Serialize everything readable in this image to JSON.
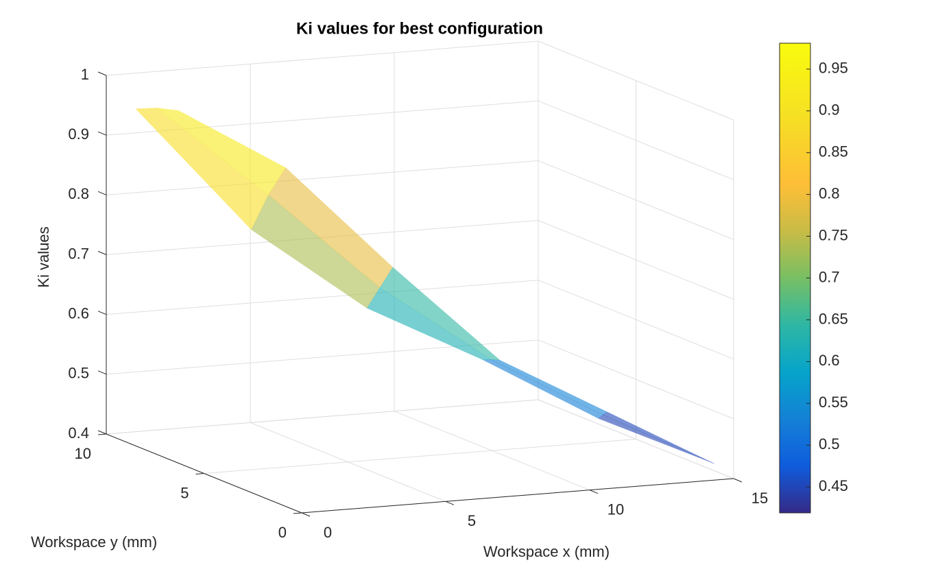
{
  "chart_data": {
    "type": "surface",
    "title": "Ki values for best configuration",
    "xlabel": "Workspace x (mm)",
    "ylabel": "Workspace y (mm)",
    "zlabel": "Ki values",
    "xlim": [
      0,
      15
    ],
    "ylim": [
      0,
      10
    ],
    "zlim": [
      0.4,
      1
    ],
    "xticks": [
      0,
      5,
      10,
      15
    ],
    "yticks": [
      0,
      5,
      10
    ],
    "zticks": [
      0.4,
      0.5,
      0.6,
      0.7,
      0.8,
      0.9,
      1
    ],
    "grid": true,
    "surface": {
      "x": [
        0,
        3,
        6,
        9,
        12,
        15
      ],
      "y": [
        [
          8.5,
          7,
          5.5,
          4,
          2.5,
          1
        ],
        [
          7.4,
          6.12,
          4.84,
          3.56,
          2.28,
          1
        ],
        [
          6.3,
          5.24,
          4.18,
          3.12,
          2.06,
          1
        ]
      ],
      "z": [
        [
          0.964,
          0.77,
          0.647,
          0.569,
          0.479,
          0.412
        ],
        [
          0.98,
          0.84,
          0.69,
          0.575,
          0.488,
          0.412
        ],
        [
          0.99,
          0.897,
          0.733,
          0.58,
          0.496,
          0.412
        ]
      ]
    },
    "colorbar": {
      "clim": [
        0.419,
        0.981
      ],
      "ticks": [
        0.45,
        0.5,
        0.55,
        0.6,
        0.65,
        0.7,
        0.75,
        0.8,
        0.85,
        0.9,
        0.95
      ]
    }
  }
}
